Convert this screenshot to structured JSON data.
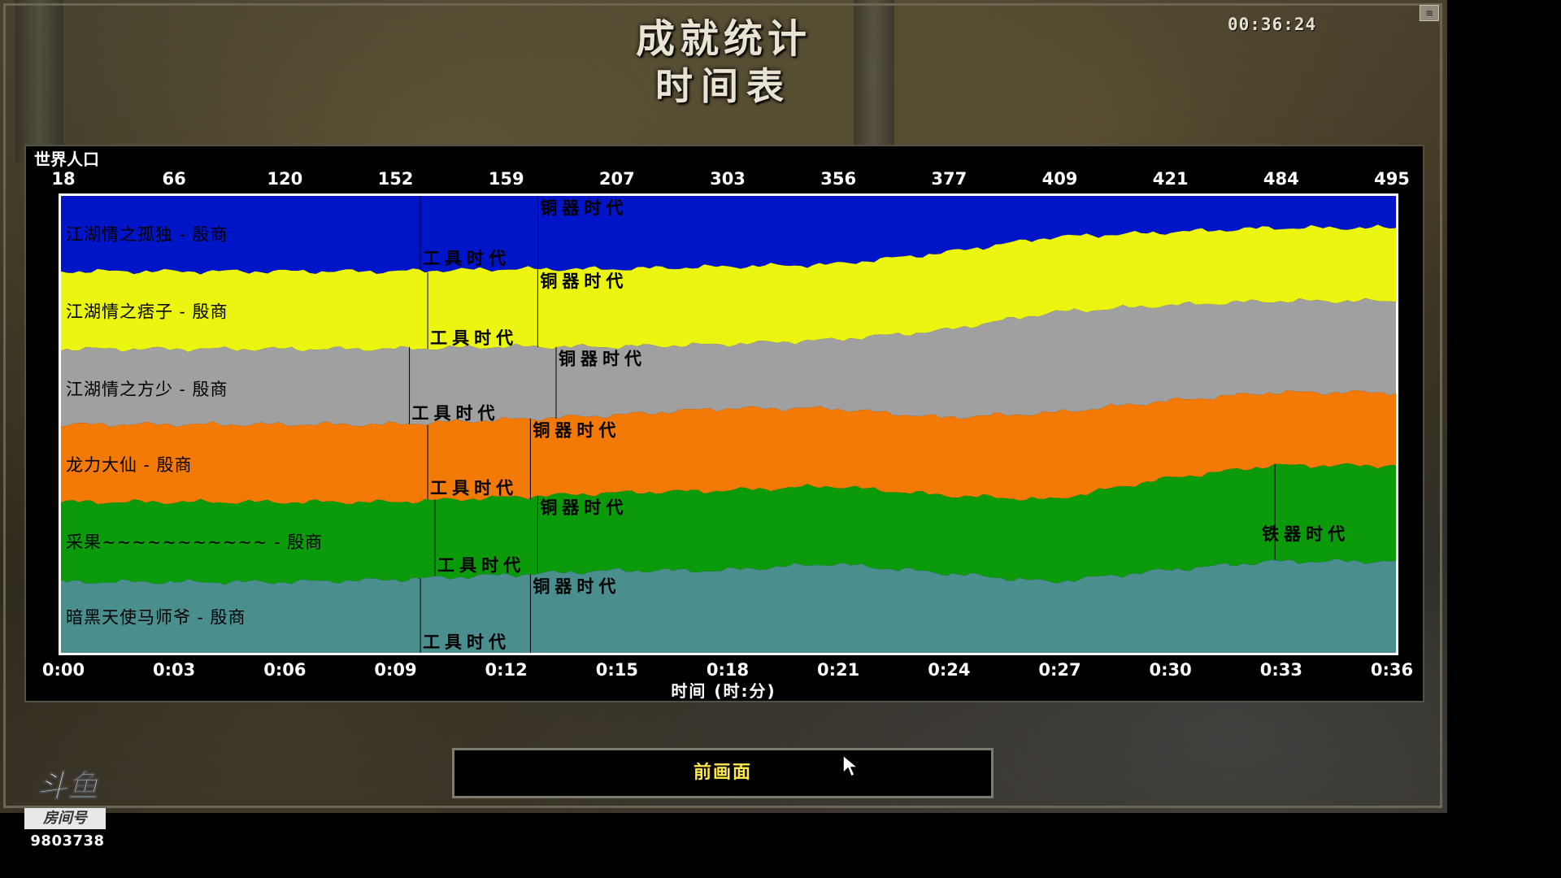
{
  "header": {
    "title": "成就统计",
    "subtitle": "时间表",
    "clock": "00:36:24"
  },
  "chart": {
    "y_title": "世界人口",
    "x_title": "时间 (时:分)"
  },
  "chart_data": {
    "type": "area",
    "population_ticks": [
      "18",
      "66",
      "120",
      "152",
      "159",
      "207",
      "303",
      "356",
      "377",
      "409",
      "421",
      "484",
      "495"
    ],
    "time_ticks": [
      "0:00",
      "0:03",
      "0:06",
      "0:09",
      "0:12",
      "0:15",
      "0:18",
      "0:21",
      "0:24",
      "0:27",
      "0:30",
      "0:33",
      "0:36"
    ],
    "xlabel": "时间 (时:分)",
    "ylabel": "世界人口",
    "x_range_minutes": [
      0,
      36.4
    ],
    "series": [
      {
        "name": "江湖情之孤独 - 殷商",
        "color": "#0015c8",
        "share_minutes": [
          0,
          3,
          6,
          9,
          12,
          15,
          18,
          21,
          24,
          27,
          30,
          33,
          36
        ],
        "share_percent": [
          16.5,
          16.5,
          16.5,
          16.5,
          16,
          16,
          15.5,
          15,
          12.5,
          9,
          8,
          7,
          7
        ],
        "ages": [
          {
            "label": "工具时代",
            "minute": 9.8
          },
          {
            "label": "铜器时代",
            "minute": 13
          }
        ]
      },
      {
        "name": "江湖情之痞子 - 殷商",
        "color": "#ecf50f",
        "share_minutes": [
          0,
          3,
          6,
          9,
          12,
          15,
          18,
          21,
          24,
          27,
          30,
          33,
          36
        ],
        "share_percent": [
          17,
          17,
          17,
          17,
          17,
          17,
          17,
          16.5,
          17,
          16.5,
          16,
          16,
          16
        ],
        "ages": [
          {
            "label": "工具时代",
            "minute": 10
          },
          {
            "label": "铜器时代",
            "minute": 13
          }
        ]
      },
      {
        "name": "江湖情之方少 - 殷商",
        "color": "#a0a0a0",
        "share_minutes": [
          0,
          3,
          6,
          9,
          12,
          15,
          18,
          21,
          24,
          27,
          30,
          33,
          36
        ],
        "share_percent": [
          16.5,
          16.5,
          16.5,
          16.5,
          16,
          15,
          14,
          15,
          19,
          22,
          21,
          20,
          20
        ],
        "ages": [
          {
            "label": "工具时代",
            "minute": 9.5
          },
          {
            "label": "铜器时代",
            "minute": 13.5
          }
        ]
      },
      {
        "name": "龙力大仙 - 殷商",
        "color": "#f37a07",
        "share_minutes": [
          0,
          3,
          6,
          9,
          12,
          15,
          18,
          21,
          24,
          27,
          30,
          33,
          36
        ],
        "share_percent": [
          17,
          17,
          17,
          17,
          17,
          17,
          18,
          17,
          17,
          19,
          17,
          16,
          16
        ],
        "ages": [
          {
            "label": "工具时代",
            "minute": 10
          },
          {
            "label": "铜器时代",
            "minute": 12.8
          }
        ]
      },
      {
        "name": "采果~~~~~~~~~~~ - 殷商",
        "color": "#0a9a0a",
        "share_minutes": [
          0,
          3,
          6,
          9,
          12,
          15,
          18,
          21,
          24,
          27,
          30,
          33,
          36
        ],
        "share_percent": [
          17.5,
          17.5,
          17.5,
          17,
          17,
          17,
          17.5,
          17,
          17,
          18,
          20,
          21,
          21
        ],
        "ages": [
          {
            "label": "工具时代",
            "minute": 10.2
          },
          {
            "label": "铜器时代",
            "minute": 13
          },
          {
            "label": "铁器时代",
            "minute": 33.1
          }
        ]
      },
      {
        "name": "暗黑天使马师爷 - 殷商",
        "color": "#4a8e8e",
        "share_minutes": [
          0,
          3,
          6,
          9,
          12,
          15,
          18,
          21,
          24,
          27,
          30,
          33,
          36
        ],
        "share_percent": [
          15.5,
          15.5,
          15.5,
          16,
          17,
          18,
          18,
          19.5,
          17.5,
          15.5,
          18,
          20,
          20
        ],
        "ages": [
          {
            "label": "工具时代",
            "minute": 9.8
          },
          {
            "label": "铜器时代",
            "minute": 12.8
          }
        ]
      }
    ]
  },
  "button": {
    "prev_label": "前画面"
  },
  "watermark": {
    "logo_text": "斗鱼",
    "room_label": "房间号",
    "room_number": "9803738"
  },
  "colors": {
    "plot_border": "#ffffff",
    "button_text": "#ffe94a"
  },
  "icons": {
    "menu": "menu-icon",
    "cursor": "mouse-cursor-icon"
  }
}
